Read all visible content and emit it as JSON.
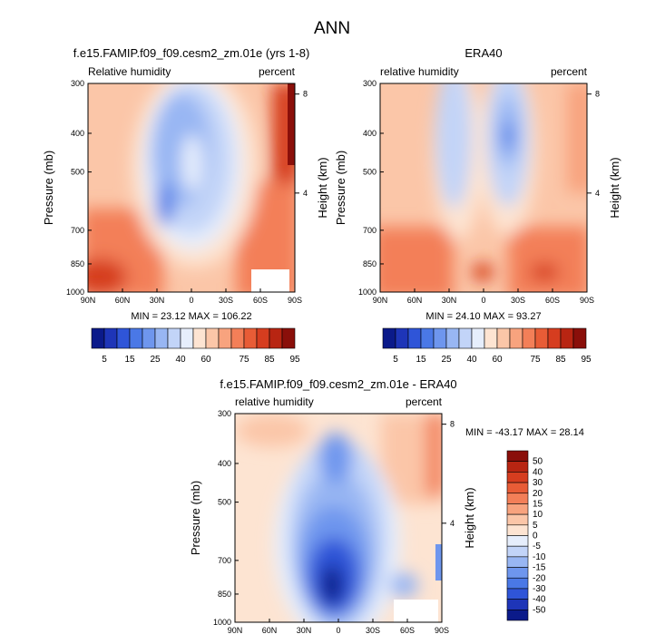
{
  "figure_title": "ANN",
  "chart_data": [
    {
      "type": "heatmap",
      "title": "f.e15.FAMIP.f09_f09.cesm2_zm.01e (yrs 1-8)",
      "left_label": "Relative humidity",
      "right_label": "percent",
      "ylabel": "Pressure (mb)",
      "ylabel_right": "Height (km)",
      "x_ticks": [
        "90N",
        "60N",
        "30N",
        "0",
        "30S",
        "60S",
        "90S"
      ],
      "y_ticks": [
        "300",
        "400",
        "500",
        "700",
        "850",
        "1000"
      ],
      "y_ticks_right": [
        "8",
        "4"
      ],
      "ylim": [
        1000,
        300
      ],
      "stats": "MIN = 23.12  MAX = 106.22",
      "colorbar_levels": [
        5,
        10,
        15,
        20,
        25,
        30,
        40,
        50,
        60,
        65,
        70,
        75,
        80,
        85,
        90,
        95
      ],
      "colorbar_labels": [
        "5",
        "15",
        "25",
        "40",
        "60",
        "75",
        "85",
        "95"
      ]
    },
    {
      "type": "heatmap",
      "title": "ERA40",
      "left_label": "relative humidity",
      "right_label": "percent",
      "ylabel": "Pressure (mb)",
      "ylabel_right": "Height (km)",
      "x_ticks": [
        "90N",
        "60N",
        "30N",
        "0",
        "30S",
        "60S",
        "90S"
      ],
      "y_ticks": [
        "300",
        "400",
        "500",
        "700",
        "850",
        "1000"
      ],
      "y_ticks_right": [
        "8",
        "4"
      ],
      "ylim": [
        1000,
        300
      ],
      "stats": "MIN = 24.10  MAX = 93.27",
      "colorbar_levels": [
        5,
        10,
        15,
        20,
        25,
        30,
        40,
        50,
        60,
        65,
        70,
        75,
        80,
        85,
        90,
        95
      ],
      "colorbar_labels": [
        "5",
        "15",
        "25",
        "40",
        "60",
        "75",
        "85",
        "95"
      ]
    },
    {
      "type": "heatmap",
      "title": "f.e15.FAMIP.f09_f09.cesm2_zm.01e - ERA40",
      "left_label": "relative humidity",
      "right_label": "percent",
      "ylabel": "Pressure (mb)",
      "ylabel_right": "Height (km)",
      "x_ticks": [
        "90N",
        "60N",
        "30N",
        "0",
        "30S",
        "60S",
        "90S"
      ],
      "y_ticks": [
        "300",
        "400",
        "500",
        "700",
        "850",
        "1000"
      ],
      "y_ticks_right": [
        "8",
        "4"
      ],
      "ylim": [
        1000,
        300
      ],
      "stats": "MIN = -43.17  MAX = 28.14",
      "colorbar_levels": [
        50,
        40,
        30,
        20,
        15,
        10,
        5,
        0,
        -5,
        -10,
        -15,
        -20,
        -30,
        -40,
        -50
      ],
      "colorbar_labels": [
        "50",
        "40",
        "30",
        "20",
        "15",
        "10",
        "5",
        "0",
        "-5",
        "-10",
        "-15",
        "-20",
        "-30",
        "-40",
        "-50"
      ]
    }
  ],
  "colors": {
    "seq": [
      "#0b1a8a",
      "#1e35b8",
      "#2f55d8",
      "#4a78e6",
      "#6e96ee",
      "#98b6f3",
      "#c2d4f8",
      "#e6eefc",
      "#fde4d2",
      "#fbc6a8",
      "#f8a37e",
      "#f37f58",
      "#e85c36",
      "#d63d1f",
      "#b82512",
      "#8a0f0a"
    ],
    "div": [
      "#8a0f0a",
      "#b82512",
      "#d63d1f",
      "#e85c36",
      "#f37f58",
      "#f8a37e",
      "#fbc6a8",
      "#fde4d2",
      "#e6eefc",
      "#c2d4f8",
      "#98b6f3",
      "#6e96ee",
      "#4a78e6",
      "#2f55d8",
      "#1e35b8",
      "#0b1a8a"
    ]
  }
}
